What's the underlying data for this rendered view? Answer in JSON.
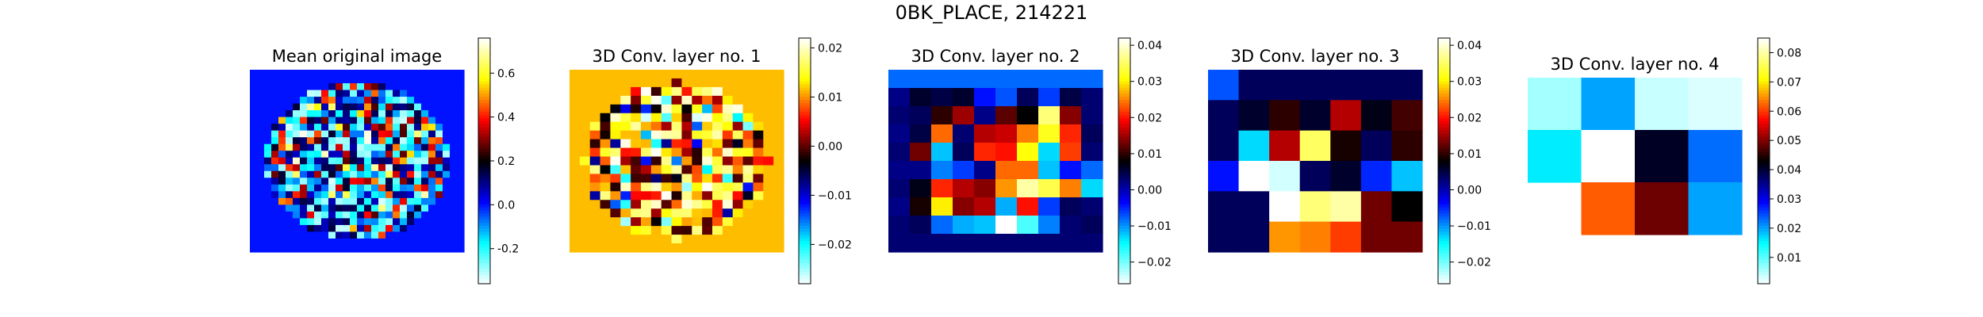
{
  "title": "0BK_PLACE, 214221",
  "colorscale": {
    "name": "flag-like diverging (cyan-blue-black-red-yellow-white)",
    "stops": [
      "#ffffff",
      "#00ffff",
      "#0000ff",
      "#000000",
      "#ff0000",
      "#ffff00",
      "#ffffff"
    ]
  },
  "chart_data": [
    {
      "type": "heatmap",
      "title": "Mean original image",
      "grid": false,
      "colorbar": {
        "vmin": -0.36,
        "vmax": 0.76,
        "ticks": [
          "-0.2",
          "0.0",
          "0.2",
          "0.4",
          "0.6"
        ],
        "tick_values": [
          -0.2,
          0.0,
          0.2,
          0.4,
          0.6
        ]
      },
      "rows": 27,
      "cols": 30,
      "background_value": 0.0,
      "mask": "ellipse",
      "generator_seed": 11
    },
    {
      "type": "heatmap",
      "title": "3D Conv. layer no. 1",
      "grid": false,
      "colorbar": {
        "vmin": -0.028,
        "vmax": 0.022,
        "ticks": [
          "−0.02",
          "−0.01",
          "0.00",
          "0.01",
          "0.02"
        ],
        "tick_values": [
          -0.02,
          -0.01,
          0.0,
          0.01,
          0.02
        ]
      },
      "rows": 21,
      "cols": 21,
      "background_value": 0.0115,
      "mask": "ellipse",
      "generator_seed": 23
    },
    {
      "type": "heatmap",
      "title": "3D Conv. layer no. 2",
      "grid": false,
      "colorbar": {
        "vmin": -0.026,
        "vmax": 0.042,
        "ticks": [
          "−0.02",
          "−0.01",
          "0.00",
          "0.01",
          "0.02",
          "0.03",
          "0.04"
        ],
        "tick_values": [
          -0.02,
          -0.01,
          0.0,
          0.01,
          0.02,
          0.03,
          0.04
        ]
      },
      "rows": 10,
      "cols": 10,
      "values": [
        [
          -0.008,
          -0.008,
          -0.008,
          -0.008,
          -0.008,
          -0.008,
          -0.008,
          -0.008,
          -0.008,
          -0.008
        ],
        [
          0.002,
          0.006,
          0.005,
          0.006,
          -0.004,
          -0.007,
          0.004,
          -0.006,
          0.005,
          0.003
        ],
        [
          0.003,
          0.004,
          0.01,
          0.015,
          0.002,
          0.012,
          0.008,
          0.036,
          0.014,
          0.003
        ],
        [
          0.002,
          0.005,
          0.024,
          0.003,
          0.016,
          0.017,
          0.025,
          0.032,
          0.021,
          0.004
        ],
        [
          0.003,
          0.013,
          -0.012,
          0.004,
          0.021,
          0.02,
          0.031,
          -0.013,
          0.022,
          0.003
        ],
        [
          0.002,
          0.002,
          -0.009,
          -0.006,
          0.002,
          0.024,
          0.024,
          -0.012,
          -0.004,
          -0.008
        ],
        [
          0.003,
          0.007,
          0.021,
          0.016,
          0.014,
          0.026,
          0.038,
          0.034,
          0.025,
          -0.013
        ],
        [
          0.002,
          0.009,
          0.03,
          0.014,
          0.016,
          -0.011,
          0.02,
          -0.006,
          0.004,
          0.003
        ],
        [
          0.003,
          0.004,
          -0.008,
          -0.011,
          -0.012,
          0.042,
          -0.018,
          -0.009,
          0.003,
          0.004
        ],
        [
          0.003,
          0.003,
          0.003,
          0.003,
          0.003,
          0.003,
          0.003,
          0.003,
          0.003,
          0.003
        ]
      ]
    },
    {
      "type": "heatmap",
      "title": "3D Conv. layer no. 3",
      "grid": false,
      "colorbar": {
        "vmin": -0.026,
        "vmax": 0.042,
        "ticks": [
          "−0.02",
          "−0.01",
          "0.00",
          "0.01",
          "0.02",
          "0.03",
          "0.04"
        ],
        "tick_values": [
          -0.02,
          -0.01,
          0.0,
          0.01,
          0.02,
          0.03,
          0.04
        ]
      },
      "rows": 6,
      "cols": 7,
      "values": [
        [
          -0.007,
          0.004,
          0.004,
          0.004,
          0.004,
          0.004,
          0.004
        ],
        [
          0.004,
          0.006,
          0.01,
          0.006,
          0.016,
          0.007,
          0.011
        ],
        [
          0.004,
          -0.013,
          0.016,
          0.035,
          0.009,
          0.004,
          0.01
        ],
        [
          -0.004,
          -0.026,
          -0.024,
          0.004,
          0.006,
          -0.005,
          -0.012
        ],
        [
          0.004,
          0.004,
          -0.026,
          0.036,
          0.038,
          0.013,
          0.008
        ],
        [
          0.004,
          0.004,
          0.026,
          0.025,
          0.022,
          0.013,
          0.013
        ]
      ]
    },
    {
      "type": "heatmap",
      "title": "3D Conv. layer no. 4",
      "grid": false,
      "colorbar": {
        "vmin": 0.001,
        "vmax": 0.085,
        "ticks": [
          "0.01",
          "0.02",
          "0.03",
          "0.04",
          "0.05",
          "0.06",
          "0.07",
          "0.08"
        ],
        "tick_values": [
          0.01,
          0.02,
          0.03,
          0.04,
          0.05,
          0.06,
          0.07,
          0.08
        ]
      },
      "rows": 3,
      "cols": 4,
      "values": [
        [
          0.006,
          0.02,
          0.004,
          0.003
        ],
        [
          0.016,
          0.085,
          0.041,
          0.023
        ],
        [
          null,
          0.062,
          0.049,
          0.02
        ]
      ]
    }
  ]
}
